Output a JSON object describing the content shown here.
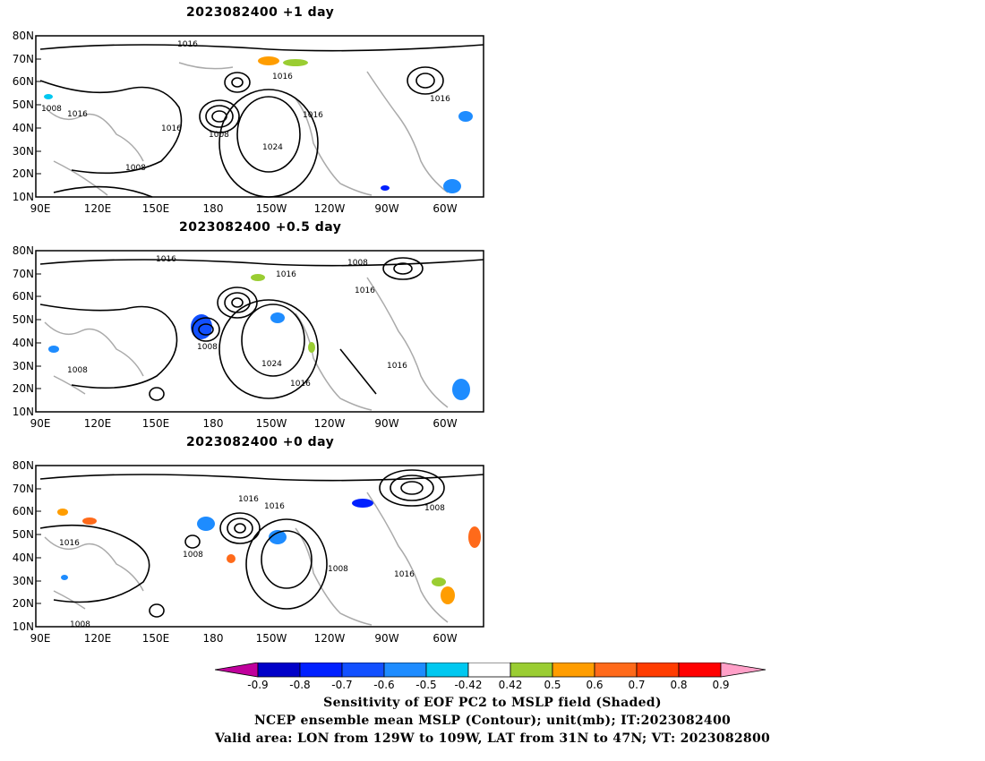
{
  "panels": [
    {
      "title": "2023082400  +1 day",
      "contour_labels": [
        "1016",
        "1008",
        "1016",
        "1016",
        "1008",
        "1024",
        "1016",
        "1008",
        "1016",
        "1016"
      ]
    },
    {
      "title": "2023082400  +0.5 day",
      "contour_labels": [
        "1016",
        "1016",
        "1008",
        "1016",
        "1008",
        "1024",
        "1016",
        "1008",
        "1016"
      ]
    },
    {
      "title": "2023082400  +0 day",
      "contour_labels": [
        "1016",
        "1016",
        "1016",
        "1008",
        "1008",
        "1016",
        "1008",
        "1008"
      ]
    }
  ],
  "lat_labels": [
    "80N",
    "70N",
    "60N",
    "50N",
    "40N",
    "30N",
    "20N",
    "10N"
  ],
  "lon_labels": [
    "90E",
    "120E",
    "150E",
    "180",
    "150W",
    "120W",
    "90W",
    "60W"
  ],
  "colorbar": {
    "labels": [
      "-0.9",
      "-0.8",
      "-0.7",
      "-0.6",
      "-0.5",
      "-0.42",
      "0.42",
      "0.5",
      "0.6",
      "0.7",
      "0.8",
      "0.9"
    ],
    "colors": [
      "#c0009c",
      "#0000c8",
      "#0020ff",
      "#1250ff",
      "#1e8cff",
      "#00c8f0",
      "#ffffff",
      "#9acd32",
      "#ff9d00",
      "#ff6a1a",
      "#ff3c00",
      "#ff0000",
      "#ffa0c8"
    ]
  },
  "caption": {
    "line1": "Sensitivity of EOF PC2 to MSLP field (Shaded)",
    "line2": "NCEP ensemble mean MSLP (Contour); unit(mb); IT:2023082400",
    "line3": "Valid area: LON from 129W to 109W, LAT from 31N to 47N; VT: 2023082800"
  }
}
